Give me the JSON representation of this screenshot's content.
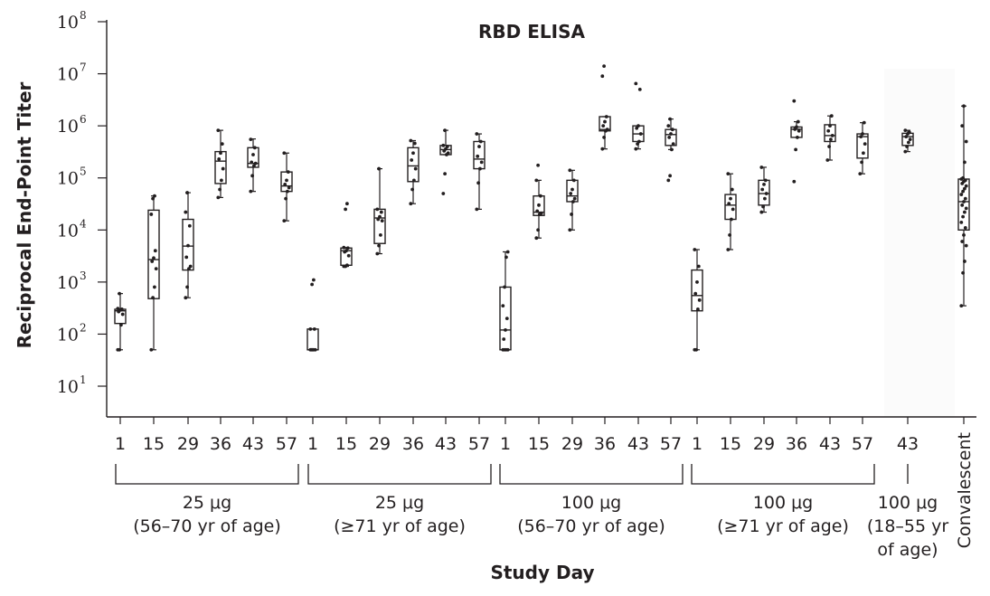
{
  "chart_data": {
    "type": "box",
    "title": "RBD ELISA",
    "xlabel": "Study Day",
    "ylabel": "Reciprocal End-Point Titer",
    "yscale": "log",
    "ylim": [
      10,
      100000000
    ],
    "yticks": [
      {
        "base": "10",
        "exp": "1",
        "value": 10
      },
      {
        "base": "10",
        "exp": "2",
        "value": 100
      },
      {
        "base": "10",
        "exp": "3",
        "value": 1000
      },
      {
        "base": "10",
        "exp": "4",
        "value": 10000
      },
      {
        "base": "10",
        "exp": "5",
        "value": 100000
      },
      {
        "base": "10",
        "exp": "6",
        "value": 1000000
      },
      {
        "base": "10",
        "exp": "7",
        "value": 10000000
      },
      {
        "base": "10",
        "exp": "8",
        "value": 100000000
      }
    ],
    "categories": [
      {
        "label": "1",
        "group": 0,
        "min": 50,
        "q1": 160,
        "median": 280,
        "q3": 300,
        "max": 600,
        "points": [
          50,
          50,
          150,
          240,
          270,
          290,
          300,
          310,
          600
        ]
      },
      {
        "label": "15",
        "group": 0,
        "min": 50,
        "q1": 480,
        "median": 2700,
        "q3": 24000,
        "max": 45000,
        "points": [
          50,
          500,
          800,
          1800,
          2500,
          2900,
          4000,
          20000,
          40000,
          45000
        ]
      },
      {
        "label": "29",
        "group": 0,
        "min": 500,
        "q1": 1700,
        "median": 4900,
        "q3": 16000,
        "max": 52000,
        "points": [
          500,
          800,
          1800,
          2000,
          3000,
          5000,
          12000,
          22000,
          52000
        ]
      },
      {
        "label": "36",
        "group": 0,
        "min": 42000,
        "q1": 78000,
        "median": 210000,
        "q3": 320000,
        "max": 820000,
        "points": [
          42000,
          60000,
          90000,
          150000,
          230000,
          300000,
          450000,
          820000
        ]
      },
      {
        "label": "43",
        "group": 0,
        "min": 55000,
        "q1": 160000,
        "median": 190000,
        "q3": 380000,
        "max": 560000,
        "points": [
          55000,
          110000,
          170000,
          190000,
          200000,
          280000,
          380000,
          550000
        ]
      },
      {
        "label": "57",
        "group": 0,
        "min": 15000,
        "q1": 55000,
        "median": 70000,
        "q3": 130000,
        "max": 300000,
        "points": [
          15000,
          40000,
          55000,
          65000,
          75000,
          90000,
          130000,
          300000
        ]
      },
      {
        "label": "1",
        "group": 1,
        "min": 50,
        "q1": 50,
        "median": 50,
        "q3": 125,
        "max": 125,
        "points": [
          50,
          50,
          50,
          50,
          50,
          50,
          125,
          125,
          900,
          1100
        ]
      },
      {
        "label": "15",
        "group": 1,
        "min": 2000,
        "q1": 2100,
        "median": 4000,
        "q3": 4500,
        "max": 4600,
        "points": [
          2000,
          2000,
          2100,
          3200,
          3800,
          4000,
          4500,
          4600,
          25000,
          32000
        ]
      },
      {
        "label": "29",
        "group": 1,
        "min": 3500,
        "q1": 5500,
        "median": 17000,
        "q3": 25000,
        "max": 150000,
        "points": [
          3500,
          5000,
          8000,
          15000,
          16000,
          18000,
          22000,
          25000,
          150000
        ]
      },
      {
        "label": "36",
        "group": 1,
        "min": 32000,
        "q1": 85000,
        "median": 170000,
        "q3": 380000,
        "max": 520000,
        "points": [
          32000,
          60000,
          90000,
          150000,
          220000,
          300000,
          460000,
          520000
        ]
      },
      {
        "label": "43",
        "group": 1,
        "min": 280000,
        "q1": 280000,
        "median": 350000,
        "q3": 420000,
        "max": 820000,
        "points": [
          50000,
          120000,
          280000,
          300000,
          330000,
          360000,
          400000,
          420000,
          820000
        ]
      },
      {
        "label": "57",
        "group": 1,
        "min": 25000,
        "q1": 150000,
        "median": 230000,
        "q3": 500000,
        "max": 700000,
        "points": [
          25000,
          80000,
          150000,
          200000,
          260000,
          400000,
          500000,
          700000
        ]
      },
      {
        "label": "1",
        "group": 2,
        "min": 50,
        "q1": 50,
        "median": 120,
        "q3": 800,
        "max": 3800,
        "points": [
          50,
          50,
          50,
          50,
          80,
          120,
          200,
          350,
          800,
          3000,
          3800
        ]
      },
      {
        "label": "15",
        "group": 2,
        "min": 7000,
        "q1": 19000,
        "median": 22000,
        "q3": 45000,
        "max": 90000,
        "points": [
          7000,
          10000,
          20000,
          21000,
          23000,
          30000,
          45000,
          90000,
          175000
        ]
      },
      {
        "label": "29",
        "group": 2,
        "min": 10000,
        "q1": 35000,
        "median": 45000,
        "q3": 90000,
        "max": 140000,
        "points": [
          10000,
          20000,
          35000,
          40000,
          50000,
          60000,
          90000,
          140000
        ]
      },
      {
        "label": "36",
        "group": 2,
        "min": 360000,
        "q1": 800000,
        "median": 850000,
        "q3": 1500000,
        "max": 1500000,
        "points": [
          360000,
          600000,
          800000,
          850000,
          1000000,
          1200000,
          1500000,
          9000000,
          14000000
        ]
      },
      {
        "label": "43",
        "group": 2,
        "min": 360000,
        "q1": 500000,
        "median": 700000,
        "q3": 1000000,
        "max": 1000000,
        "points": [
          360000,
          450000,
          500000,
          700000,
          900000,
          1000000,
          5000000,
          6500000
        ]
      },
      {
        "label": "57",
        "group": 2,
        "min": 350000,
        "q1": 420000,
        "median": 680000,
        "q3": 850000,
        "max": 1350000,
        "points": [
          90000,
          110000,
          350000,
          450000,
          600000,
          700000,
          850000,
          1000000,
          1350000
        ]
      },
      {
        "label": "1",
        "group": 3,
        "min": 50,
        "q1": 280,
        "median": 550,
        "q3": 1700,
        "max": 4200,
        "points": [
          50,
          50,
          300,
          450,
          600,
          1000,
          2000,
          4200
        ]
      },
      {
        "label": "15",
        "group": 3,
        "min": 4200,
        "q1": 16000,
        "median": 30000,
        "q3": 48000,
        "max": 120000,
        "points": [
          4200,
          8000,
          16000,
          25000,
          32000,
          40000,
          60000,
          120000
        ]
      },
      {
        "label": "29",
        "group": 3,
        "min": 22000,
        "q1": 30000,
        "median": 50000,
        "q3": 90000,
        "max": 160000,
        "points": [
          22000,
          28000,
          40000,
          50000,
          60000,
          75000,
          90000,
          160000
        ]
      },
      {
        "label": "36",
        "group": 3,
        "min": 600000,
        "q1": 600000,
        "median": 860000,
        "q3": 950000,
        "max": 1200000,
        "points": [
          85000,
          350000,
          600000,
          800000,
          860000,
          950000,
          1200000,
          3000000
        ]
      },
      {
        "label": "43",
        "group": 3,
        "min": 220000,
        "q1": 500000,
        "median": 650000,
        "q3": 1050000,
        "max": 1550000,
        "points": [
          220000,
          400000,
          550000,
          650000,
          800000,
          1000000,
          1550000
        ]
      },
      {
        "label": "57",
        "group": 3,
        "min": 120000,
        "q1": 240000,
        "median": 620000,
        "q3": 700000,
        "max": 1150000,
        "points": [
          120000,
          200000,
          300000,
          450000,
          620000,
          700000,
          1150000
        ]
      },
      {
        "label": "43",
        "group": 4,
        "min": 320000,
        "q1": 420000,
        "median": 620000,
        "q3": 720000,
        "max": 820000,
        "points": [
          320000,
          400000,
          480000,
          550000,
          620000,
          700000,
          750000,
          820000
        ]
      },
      {
        "label": "Convalescent",
        "group": 5,
        "min": 350,
        "q1": 10000,
        "median": 35000,
        "q3": 95000,
        "max": 2400000,
        "points": [
          350,
          1500,
          2500,
          5000,
          6000,
          8000,
          11000,
          14000,
          18000,
          22000,
          26000,
          30000,
          35000,
          40000,
          48000,
          55000,
          62000,
          70000,
          78000,
          85000,
          90000,
          95000,
          100000,
          200000,
          500000,
          1000000,
          2400000
        ]
      }
    ],
    "groups": [
      {
        "dose": "25 μg",
        "age": "(56–70 yr of age)"
      },
      {
        "dose": "25 μg",
        "age": "(≥71 yr of age)"
      },
      {
        "dose": "100 μg",
        "age": "(56–70 yr of age)"
      },
      {
        "dose": "100 μg",
        "age": "(≥71 yr of age)"
      },
      {
        "dose": "100 μg",
        "age": "(18–55 yr",
        "age2": "of age)"
      }
    ]
  }
}
